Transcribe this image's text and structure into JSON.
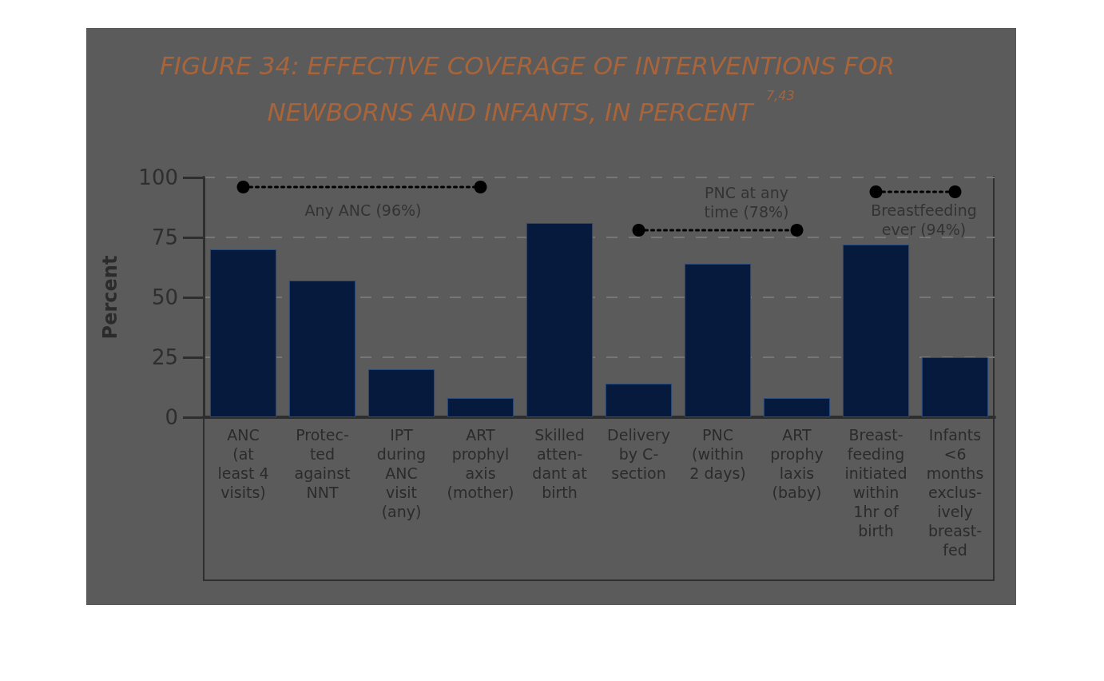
{
  "chart_data": {
    "type": "bar",
    "title": "FIGURE 34: EFFECTIVE COVERAGE OF INTERVENTIONS FOR NEWBORNS AND INFANTS, IN PERCENT $^{7,43}$",
    "ylabel": "Percent",
    "categories": [
      "ANC\n(at\nleast 4\nvisits)",
      "Protec-\nted\nagainst\nNNT",
      "IPT\nduring\nANC\nvisit\n(any)",
      "ART\nprophyl\naxis\n(mother)",
      "Skilled\natten-\ndant at\nbirth",
      "Delivery\nby C-\nsection",
      "PNC\n(within\n2 days)",
      "ART\nprophy\nlaxis\n(baby)",
      "Breast-\nfeeding\ninitiated\nwithin\n1hr of\nbirth",
      "Infants\n<6\nmonths\nexclus-\nively\nbreast-\nfed"
    ],
    "series": [
      {
        "color": "#061a3d",
        "values": [
          70,
          57,
          20,
          8,
          81,
          14,
          64,
          8,
          72,
          25
        ]
      },
      {
        "type": "line",
        "name": "Any ANC (96%)",
        "color": "#000000",
        "line_style": "dotted",
        "marker": "circle",
        "x": [
          "ANC\n(at\nleast 4\nvisits)",
          "ART\nprophyl\naxis\n(mother)"
        ],
        "values": [
          96,
          96
        ]
      },
      {
        "type": "line",
        "name": "PNC at any\ntime (78%)",
        "color": "#000000",
        "line_style": "dotted",
        "marker": "circle",
        "x": [
          "Delivery\nby C-\nsection",
          "ART\nprophy\nlaxis\n(baby)"
        ],
        "values": [
          78,
          78
        ]
      },
      {
        "type": "line",
        "name": "Breastfeeding\never (94%)",
        "color": "#000000",
        "line_style": "dotted",
        "marker": "circle",
        "x": [
          "Breast-\nfeeding\ninitiated\nwithin\n1hr of\nbirth",
          "Infants\n<6\nmonths\nexclus-\nively\nbreast-\nfed"
        ],
        "values": [
          94,
          94
        ]
      }
    ],
    "ylim": [
      0,
      100
    ],
    "yticks": [
      0,
      25,
      50,
      75,
      100
    ],
    "grid": "y",
    "legend": false
  }
}
